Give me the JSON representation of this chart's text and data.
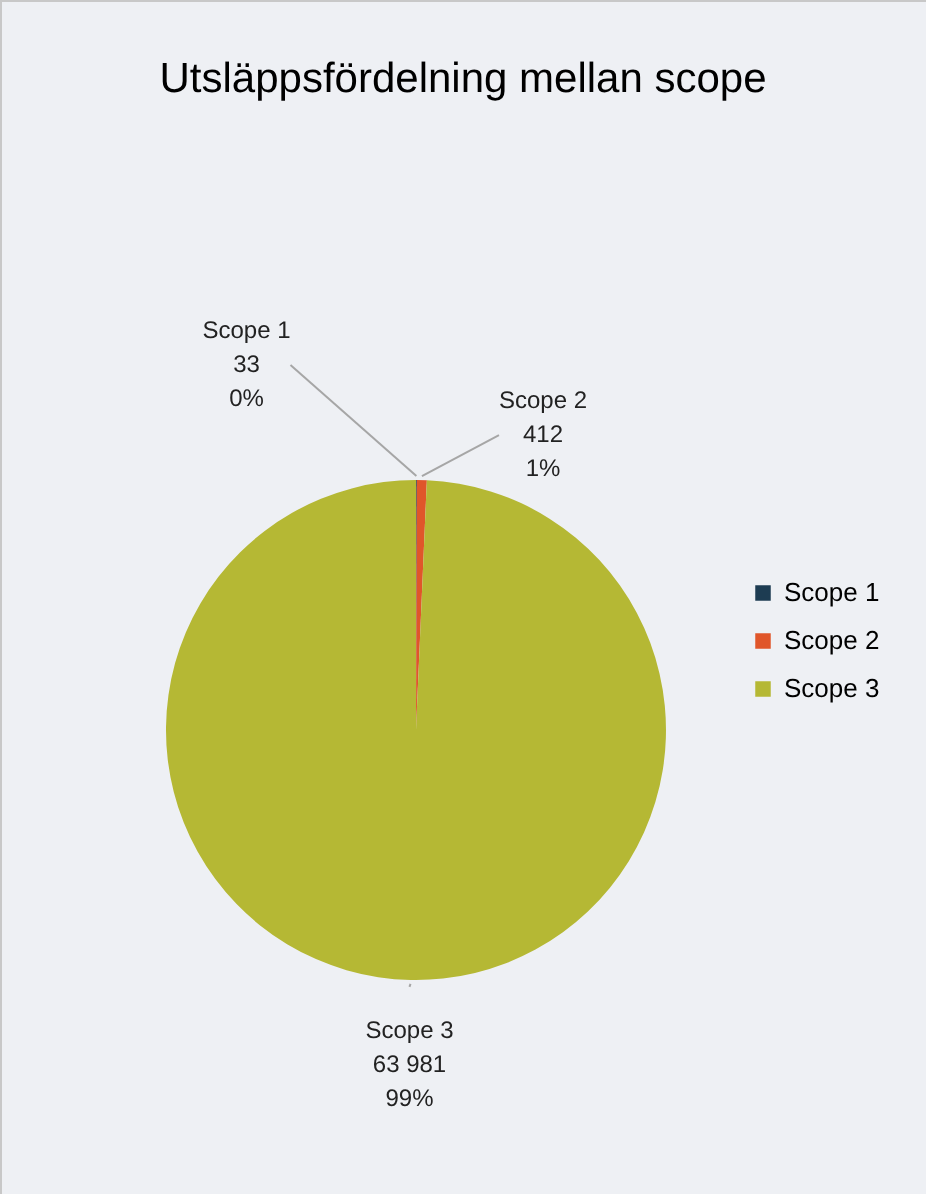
{
  "chart_data": {
    "type": "pie",
    "title": "Utsläppsfördelning mellan scope",
    "categories": [
      "Scope 1",
      "Scope 2",
      "Scope 3"
    ],
    "values": [
      33,
      412,
      63981
    ],
    "colors": [
      "#1d3c52",
      "#e0562a",
      "#b5b834"
    ],
    "value_labels": [
      "33\n0%",
      "412\n1%",
      "63 981\n99%"
    ],
    "legend": "right"
  }
}
